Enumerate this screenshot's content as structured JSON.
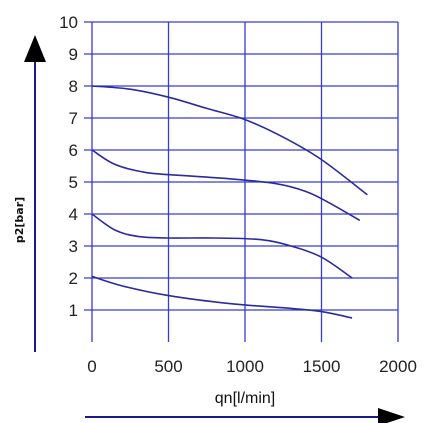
{
  "chart_data": {
    "type": "line",
    "title": "",
    "xlabel": "qn[l/min]",
    "ylabel": "p2[bar]",
    "xlim": [
      0,
      2000
    ],
    "ylim": [
      0,
      10
    ],
    "x_ticks": [
      "0",
      "500",
      "1000",
      "1500",
      "2000"
    ],
    "y_ticks": [
      "1",
      "2",
      "3",
      "4",
      "5",
      "6",
      "7",
      "8",
      "9",
      "10"
    ],
    "grid": true,
    "legend": "none",
    "colors": {
      "grid": "#3a3ad4",
      "curve": "#2b2b9e",
      "axis": "#1a1a8c",
      "arrow": "#000000"
    },
    "series": [
      {
        "x": [
          0,
          250,
          500,
          750,
          1000,
          1250,
          1500,
          1800
        ],
        "y": [
          8.0,
          7.9,
          7.65,
          7.3,
          6.95,
          6.4,
          5.7,
          4.6
        ]
      },
      {
        "x": [
          0,
          150,
          350,
          600,
          900,
          1200,
          1400,
          1550,
          1750
        ],
        "y": [
          6.0,
          5.55,
          5.3,
          5.2,
          5.1,
          4.95,
          4.7,
          4.35,
          3.8
        ]
      },
      {
        "x": [
          0,
          150,
          300,
          500,
          800,
          1100,
          1300,
          1500,
          1700
        ],
        "y": [
          4.0,
          3.5,
          3.3,
          3.25,
          3.25,
          3.2,
          3.0,
          2.65,
          2.0
        ]
      },
      {
        "x": [
          0,
          200,
          500,
          900,
          1300,
          1500,
          1700
        ],
        "y": [
          2.05,
          1.75,
          1.45,
          1.2,
          1.05,
          0.95,
          0.75
        ]
      }
    ]
  }
}
